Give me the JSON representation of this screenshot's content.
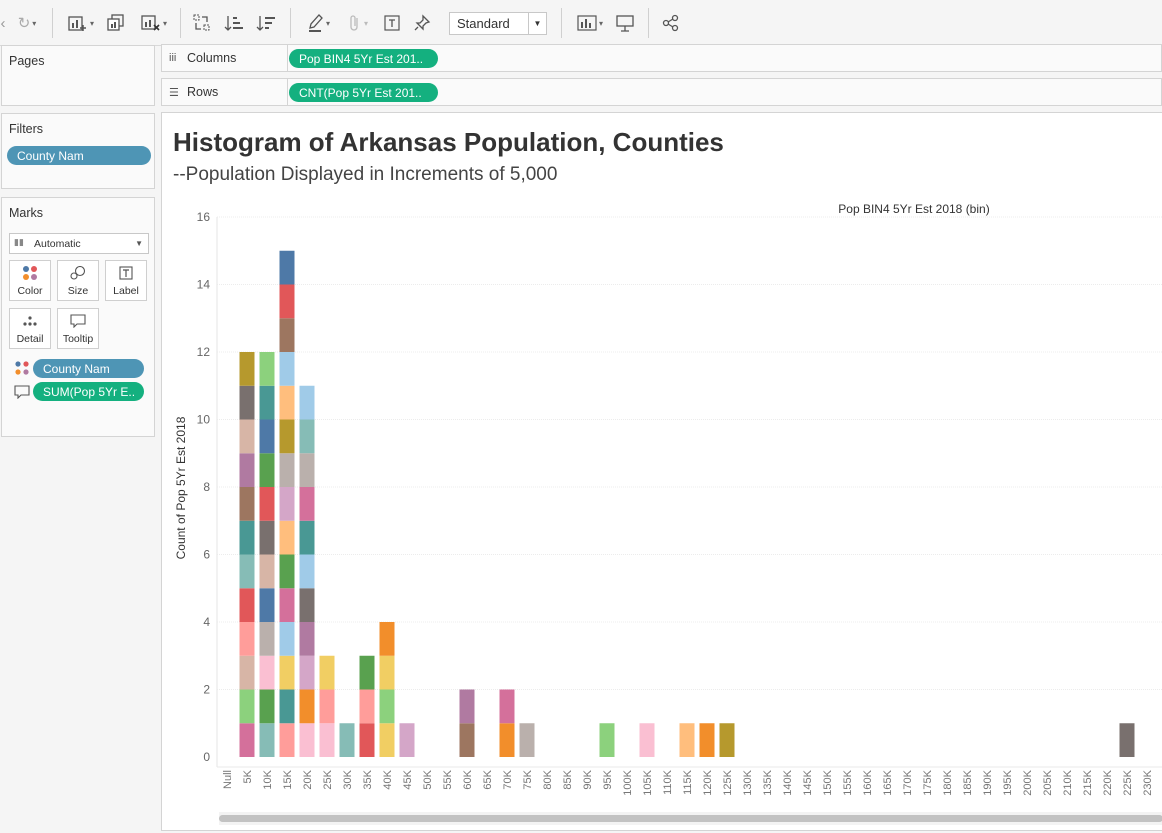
{
  "toolbar": {
    "mark_size_select": "Standard",
    "icons": [
      "refresh-icon",
      "new-worksheet-icon",
      "duplicate-icon",
      "clear-sheet-icon",
      "swap-rows-columns-icon",
      "sort-ascending-icon",
      "sort-descending-icon",
      "highlight-icon",
      "paperclip-icon",
      "text-label-icon",
      "pin-icon",
      "show-me-icon",
      "presentation-icon",
      "share-icon"
    ]
  },
  "pages": {
    "title": "Pages"
  },
  "filters": {
    "title": "Filters",
    "pill": "County Nam"
  },
  "marks": {
    "title": "Marks",
    "type": "Automatic",
    "buttons": [
      "Color",
      "Size",
      "Label",
      "Detail",
      "Tooltip"
    ],
    "color_pill": "County Nam",
    "tooltip_pill": "SUM(Pop 5Yr E.."
  },
  "shelves": {
    "columns_label": "Columns",
    "columns_pill": "Pop BIN4 5Yr Est 201..",
    "rows_label": "Rows",
    "rows_pill": "CNT(Pop 5Yr Est 201.."
  },
  "viz": {
    "title": "Histogram of Arkansas Population, Counties",
    "subtitle": "--Population Displayed in Increments of 5,000"
  },
  "chart_data": {
    "type": "bar",
    "stacked": true,
    "title": "Histogram of Arkansas Population, Counties",
    "subtitle": "--Population Displayed in Increments of 5,000",
    "xlabel": "Pop BIN4 5Yr Est 2018 (bin)",
    "ylabel": "Count of Pop 5Yr Est 2018",
    "ylim": [
      0,
      16
    ],
    "yticks": [
      0,
      2,
      4,
      6,
      8,
      10,
      12,
      14,
      16
    ],
    "grid": true,
    "categories": [
      "Null",
      "5K",
      "10K",
      "15K",
      "20K",
      "25K",
      "30K",
      "35K",
      "40K",
      "45K",
      "50K",
      "55K",
      "60K",
      "65K",
      "70K",
      "75K",
      "80K",
      "85K",
      "90K",
      "95K",
      "100K",
      "105K",
      "110K",
      "115K",
      "120K",
      "125K",
      "130K",
      "135K",
      "140K",
      "145K",
      "150K",
      "155K",
      "160K",
      "165K",
      "170K",
      "175K",
      "180K",
      "185K",
      "190K",
      "195K",
      "200K",
      "205K",
      "210K",
      "215K",
      "220K",
      "225K",
      "230K"
    ],
    "values": [
      0,
      12,
      12,
      15,
      11,
      3,
      1,
      3,
      4,
      1,
      0,
      0,
      2,
      0,
      2,
      1,
      0,
      0,
      0,
      1,
      0,
      1,
      0,
      1,
      1,
      1,
      0,
      0,
      0,
      0,
      0,
      0,
      0,
      0,
      0,
      0,
      0,
      0,
      0,
      0,
      0,
      0,
      0,
      0,
      0,
      1,
      0
    ],
    "segment_colors": {
      "5K": [
        "#d4709b",
        "#8cd17d",
        "#d7b5a6",
        "#ff9d9a",
        "#e15759",
        "#86bcb6",
        "#499894",
        "#9d7660",
        "#b07aa1",
        "#d7b5a6",
        "#79706e",
        "#b6992d"
      ],
      "10K": [
        "#86bcb6",
        "#59a14f",
        "#fabfd2",
        "#bab0ac",
        "#4e79a7",
        "#d7b5a6",
        "#79706e",
        "#e15759",
        "#59a14f",
        "#4e79a7",
        "#499894",
        "#8cd17d"
      ],
      "15K": [
        "#ff9d9a",
        "#499894",
        "#f1ce63",
        "#a0cbe8",
        "#d4709b",
        "#59a14f",
        "#ffbe7d",
        "#d4a6c8",
        "#bab0ac",
        "#b6992d",
        "#ffbe7d",
        "#a0cbe8",
        "#9d7660",
        "#e15759",
        "#4e79a7"
      ],
      "20K": [
        "#fabfd2",
        "#f28e2b",
        "#d4a6c8",
        "#b07aa1",
        "#79706e",
        "#a0cbe8",
        "#499894",
        "#d4709b",
        "#bab0ac",
        "#86bcb6",
        "#a0cbe8"
      ],
      "25K": [
        "#fabfd2",
        "#ff9d9a",
        "#f1ce63"
      ],
      "30K": [
        "#86bcb6"
      ],
      "35K": [
        "#e15759",
        "#ff9d9a",
        "#59a14f"
      ],
      "40K": [
        "#f1ce63",
        "#8cd17d",
        "#f1ce63",
        "#f28e2b"
      ],
      "45K": [
        "#d4a6c8"
      ],
      "60K": [
        "#9d7660",
        "#b07aa1"
      ],
      "70K": [
        "#f28e2b",
        "#d4709b"
      ],
      "75K": [
        "#bab0ac"
      ],
      "95K": [
        "#8cd17d"
      ],
      "105K": [
        "#fabfd2"
      ],
      "115K": [
        "#ffbe7d"
      ],
      "120K": [
        "#f28e2b"
      ],
      "125K": [
        "#b6992d"
      ],
      "225K": [
        "#79706e"
      ]
    }
  }
}
